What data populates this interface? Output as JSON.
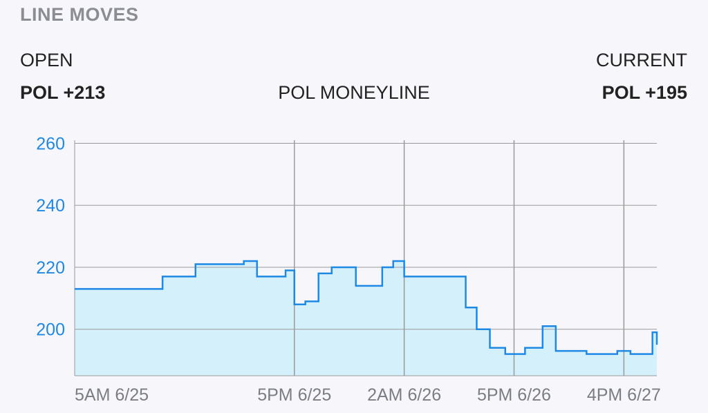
{
  "header": {
    "section_title": "LINE MOVES",
    "open_label": "OPEN",
    "open_value": "POL +213",
    "market_label": "POL MONEYLINE",
    "current_label": "CURRENT",
    "current_value": "POL +195"
  },
  "chart_data": {
    "type": "line",
    "step": true,
    "title": "",
    "xlabel": "",
    "ylabel": "",
    "ylim": [
      185,
      261
    ],
    "y_ticks": [
      200,
      220,
      240,
      260
    ],
    "x_ticks": [
      "5AM 6/25",
      "5PM 6/25",
      "2AM 6/26",
      "5PM 6/26",
      "4PM 6/27"
    ],
    "x_tick_positions": [
      0,
      0.5,
      1.0,
      1.5,
      2.0
    ],
    "xlim": [
      -0.5,
      2.15
    ],
    "grid": true,
    "line_color": "#1e88e5",
    "fill_color": "#d4f0fb",
    "series": [
      {
        "x": [
          -0.5,
          -0.1,
          0.05,
          0.27,
          0.33,
          0.46,
          0.5,
          0.55,
          0.61,
          0.67,
          0.78,
          0.9,
          0.95,
          1.0,
          1.28,
          1.33,
          1.39,
          1.46,
          1.55,
          1.63,
          1.69,
          1.83,
          1.97,
          2.03,
          2.15
        ],
        "values": [
          213,
          217,
          221,
          222,
          217,
          219,
          208,
          209,
          218,
          220,
          214,
          220,
          222,
          217,
          207,
          200,
          194,
          192,
          194,
          201,
          193,
          192,
          193,
          192,
          195
        ]
      }
    ],
    "extra_steps": [
      {
        "x": 1.74,
        "value": 193
      },
      {
        "x": 2.13,
        "value": 199
      }
    ]
  },
  "colors": {
    "grid": "#9a9a9a",
    "tick_y": "#1e88e5",
    "tick_x": "#7a7d83"
  }
}
